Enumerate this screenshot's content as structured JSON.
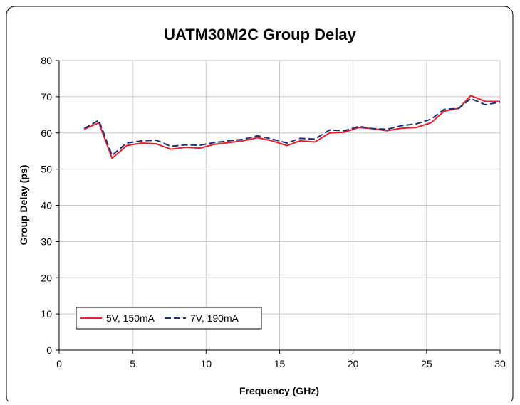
{
  "chart_data": {
    "type": "line",
    "title": "UATM30M2C Group Delay",
    "xlabel": "Frequency (GHz)",
    "ylabel": "Group Delay (ps)",
    "x": [
      1.7,
      2.7,
      3.6,
      4.6,
      5.6,
      6.6,
      7.6,
      8.6,
      9.6,
      10.5,
      11.5,
      12.5,
      13.5,
      14.5,
      15.5,
      16.4,
      17.4,
      18.4,
      19.4,
      20.4,
      21.3,
      22.3,
      23.3,
      24.3,
      25.3,
      26.2,
      27.2,
      28.0,
      29.0,
      30.0
    ],
    "series": [
      {
        "name": "5V, 150mA",
        "color": "#e8202a",
        "dash": false,
        "values": [
          61,
          62.8,
          53,
          56.5,
          57.2,
          57,
          55.5,
          56,
          55.8,
          56.8,
          57.3,
          57.8,
          58.7,
          57.8,
          56.5,
          57.8,
          57.5,
          60,
          60.2,
          61.5,
          61.2,
          60.6,
          61.3,
          61.5,
          62.8,
          66,
          66.8,
          70.3,
          68.7,
          68.7
        ]
      },
      {
        "name": "7V, 190mA",
        "color": "#1f2d7a",
        "dash": true,
        "values": [
          61.2,
          63.5,
          53.8,
          57.2,
          57.8,
          58,
          56.3,
          56.7,
          56.6,
          57.3,
          57.8,
          58.2,
          59.2,
          58.3,
          57.2,
          58.5,
          58.3,
          60.8,
          60.6,
          61.8,
          61.2,
          61,
          62,
          62.5,
          63.8,
          66.5,
          66.8,
          69.5,
          67.8,
          68.5
        ]
      }
    ],
    "xlim": [
      0,
      30
    ],
    "xticks": [
      0,
      5,
      10,
      15,
      20,
      25,
      30
    ],
    "ylim": [
      0,
      80
    ],
    "yticks": [
      0,
      10,
      20,
      30,
      40,
      50,
      60,
      70,
      80
    ],
    "grid": true,
    "legend": "lower left"
  }
}
